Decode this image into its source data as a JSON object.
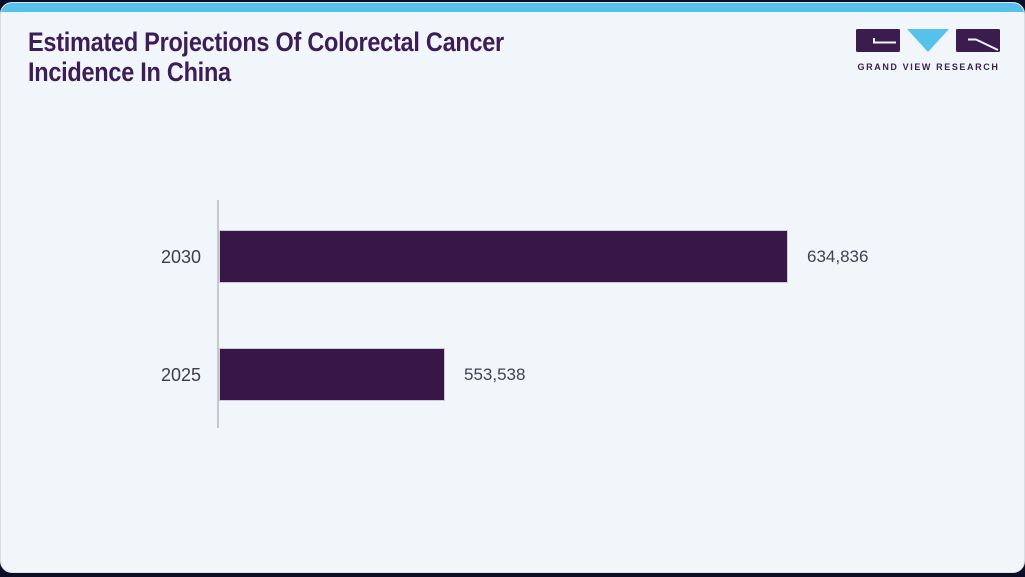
{
  "page": {
    "background_color": "#0a0f26",
    "card_color": "#f1f6fa",
    "accent_color": "#56c1ea"
  },
  "header": {
    "title": "Estimated Projections Of Colorectal Cancer Incidence In China",
    "title_lines": [
      "Estimated Projections Of Colorectal Cancer",
      "Incidence In China"
    ],
    "title_color": "#3d1c57"
  },
  "logo": {
    "text": "GRAND VIEW RESEARCH",
    "purple": "#3a1d4e",
    "blue": "#56c1ea"
  },
  "chart_data": {
    "type": "bar",
    "orientation": "horizontal",
    "title": "Estimated Projections Of Colorectal Cancer Incidence In China",
    "categories": [
      "2030",
      "2025"
    ],
    "values": [
      634836,
      553538
    ],
    "value_labels": [
      "634,836",
      "553,538"
    ],
    "xlim": [
      500000,
      640000
    ],
    "bar_color": "#371747",
    "axis_color": "#c5c9ce",
    "grid": false,
    "legend": false
  }
}
